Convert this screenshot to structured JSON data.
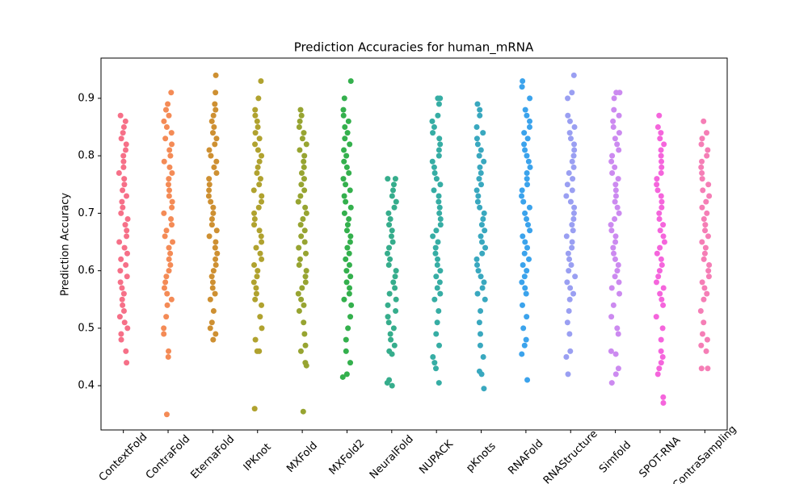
{
  "chart_data": {
    "type": "strip",
    "title": "Prediction Accuracies for human_mRNA",
    "ylabel": "Prediction Accuracy",
    "categories": [
      "ContextFold",
      "ContraFold",
      "EternaFold",
      "IPKnot",
      "MXFold",
      "MXFold2",
      "NeuralFold",
      "NUPACK",
      "pKnots",
      "RNAFold",
      "RNAStructure",
      "Simfold",
      "SPOT-RNA",
      "ContraSampling"
    ],
    "colors": [
      "#f67088",
      "#f48b56",
      "#ce9032",
      "#b0a22f",
      "#97a431",
      "#34b04d",
      "#36ad8c",
      "#36ada4",
      "#39a8bf",
      "#3ba3ec",
      "#9a9ff2",
      "#cc8af0",
      "#f565dc",
      "#f57eb6"
    ],
    "values": [
      [
        0.87,
        0.86,
        0.85,
        0.84,
        0.83,
        0.82,
        0.81,
        0.8,
        0.79,
        0.78,
        0.77,
        0.76,
        0.75,
        0.74,
        0.73,
        0.72,
        0.71,
        0.7,
        0.69,
        0.68,
        0.67,
        0.66,
        0.65,
        0.64,
        0.63,
        0.62,
        0.61,
        0.6,
        0.59,
        0.58,
        0.57,
        0.56,
        0.55,
        0.54,
        0.53,
        0.52,
        0.51,
        0.5,
        0.49,
        0.48,
        0.46,
        0.44
      ],
      [
        0.91,
        0.89,
        0.88,
        0.87,
        0.86,
        0.85,
        0.84,
        0.83,
        0.82,
        0.81,
        0.8,
        0.79,
        0.78,
        0.77,
        0.76,
        0.75,
        0.74,
        0.73,
        0.72,
        0.71,
        0.7,
        0.69,
        0.68,
        0.67,
        0.66,
        0.65,
        0.64,
        0.63,
        0.62,
        0.61,
        0.6,
        0.59,
        0.58,
        0.57,
        0.56,
        0.55,
        0.54,
        0.52,
        0.5,
        0.49,
        0.46,
        0.45,
        0.35
      ],
      [
        0.94,
        0.91,
        0.89,
        0.88,
        0.87,
        0.86,
        0.85,
        0.84,
        0.83,
        0.82,
        0.81,
        0.8,
        0.79,
        0.78,
        0.77,
        0.76,
        0.75,
        0.74,
        0.73,
        0.72,
        0.71,
        0.7,
        0.69,
        0.68,
        0.67,
        0.66,
        0.65,
        0.64,
        0.63,
        0.62,
        0.61,
        0.6,
        0.59,
        0.58,
        0.57,
        0.56,
        0.55,
        0.53,
        0.51,
        0.5,
        0.49,
        0.48
      ],
      [
        0.93,
        0.9,
        0.88,
        0.87,
        0.86,
        0.85,
        0.84,
        0.83,
        0.82,
        0.81,
        0.8,
        0.79,
        0.78,
        0.77,
        0.76,
        0.75,
        0.74,
        0.73,
        0.72,
        0.71,
        0.7,
        0.69,
        0.68,
        0.67,
        0.66,
        0.65,
        0.64,
        0.63,
        0.62,
        0.61,
        0.6,
        0.59,
        0.58,
        0.57,
        0.56,
        0.55,
        0.54,
        0.52,
        0.5,
        0.48,
        0.46,
        0.46,
        0.36
      ],
      [
        0.88,
        0.87,
        0.86,
        0.85,
        0.84,
        0.83,
        0.82,
        0.81,
        0.8,
        0.79,
        0.78,
        0.77,
        0.76,
        0.75,
        0.74,
        0.73,
        0.72,
        0.71,
        0.7,
        0.69,
        0.68,
        0.67,
        0.66,
        0.65,
        0.64,
        0.63,
        0.62,
        0.61,
        0.6,
        0.59,
        0.58,
        0.57,
        0.56,
        0.55,
        0.54,
        0.53,
        0.51,
        0.49,
        0.47,
        0.46,
        0.44,
        0.435,
        0.355
      ],
      [
        0.93,
        0.9,
        0.88,
        0.87,
        0.86,
        0.85,
        0.84,
        0.83,
        0.82,
        0.81,
        0.8,
        0.79,
        0.78,
        0.77,
        0.76,
        0.75,
        0.74,
        0.73,
        0.72,
        0.71,
        0.7,
        0.69,
        0.68,
        0.67,
        0.66,
        0.65,
        0.64,
        0.63,
        0.62,
        0.61,
        0.6,
        0.59,
        0.58,
        0.57,
        0.56,
        0.55,
        0.54,
        0.52,
        0.5,
        0.48,
        0.46,
        0.44,
        0.42,
        0.415
      ],
      [
        0.76,
        0.76,
        0.75,
        0.74,
        0.73,
        0.72,
        0.71,
        0.7,
        0.69,
        0.68,
        0.67,
        0.66,
        0.65,
        0.64,
        0.63,
        0.62,
        0.61,
        0.6,
        0.59,
        0.58,
        0.57,
        0.56,
        0.55,
        0.54,
        0.53,
        0.52,
        0.51,
        0.5,
        0.49,
        0.48,
        0.47,
        0.46,
        0.455,
        0.41,
        0.405,
        0.4
      ],
      [
        0.9,
        0.9,
        0.89,
        0.87,
        0.86,
        0.85,
        0.84,
        0.83,
        0.82,
        0.81,
        0.8,
        0.79,
        0.78,
        0.77,
        0.76,
        0.75,
        0.74,
        0.73,
        0.72,
        0.71,
        0.7,
        0.69,
        0.68,
        0.67,
        0.66,
        0.65,
        0.64,
        0.63,
        0.62,
        0.61,
        0.6,
        0.59,
        0.58,
        0.57,
        0.56,
        0.55,
        0.53,
        0.51,
        0.49,
        0.47,
        0.45,
        0.44,
        0.43,
        0.405
      ],
      [
        0.89,
        0.88,
        0.87,
        0.85,
        0.84,
        0.83,
        0.82,
        0.81,
        0.8,
        0.79,
        0.78,
        0.77,
        0.76,
        0.75,
        0.74,
        0.73,
        0.72,
        0.71,
        0.7,
        0.69,
        0.68,
        0.67,
        0.66,
        0.65,
        0.64,
        0.63,
        0.62,
        0.61,
        0.6,
        0.59,
        0.58,
        0.57,
        0.56,
        0.55,
        0.53,
        0.51,
        0.49,
        0.47,
        0.45,
        0.425,
        0.42,
        0.395
      ],
      [
        0.93,
        0.92,
        0.9,
        0.88,
        0.87,
        0.86,
        0.85,
        0.84,
        0.83,
        0.82,
        0.81,
        0.8,
        0.79,
        0.78,
        0.77,
        0.76,
        0.75,
        0.74,
        0.73,
        0.72,
        0.71,
        0.7,
        0.69,
        0.68,
        0.67,
        0.66,
        0.65,
        0.64,
        0.63,
        0.62,
        0.61,
        0.6,
        0.59,
        0.58,
        0.57,
        0.56,
        0.54,
        0.52,
        0.5,
        0.48,
        0.47,
        0.455,
        0.41
      ],
      [
        0.94,
        0.91,
        0.9,
        0.87,
        0.86,
        0.85,
        0.84,
        0.83,
        0.82,
        0.81,
        0.8,
        0.79,
        0.78,
        0.77,
        0.76,
        0.75,
        0.74,
        0.73,
        0.72,
        0.71,
        0.7,
        0.69,
        0.68,
        0.67,
        0.66,
        0.65,
        0.64,
        0.63,
        0.62,
        0.61,
        0.6,
        0.59,
        0.58,
        0.57,
        0.56,
        0.55,
        0.53,
        0.51,
        0.49,
        0.46,
        0.45,
        0.42
      ],
      [
        0.91,
        0.91,
        0.9,
        0.88,
        0.87,
        0.86,
        0.85,
        0.84,
        0.83,
        0.82,
        0.81,
        0.8,
        0.79,
        0.78,
        0.77,
        0.76,
        0.75,
        0.74,
        0.73,
        0.72,
        0.71,
        0.7,
        0.69,
        0.68,
        0.67,
        0.66,
        0.65,
        0.64,
        0.63,
        0.62,
        0.61,
        0.6,
        0.59,
        0.58,
        0.57,
        0.56,
        0.54,
        0.52,
        0.5,
        0.49,
        0.46,
        0.455,
        0.43,
        0.42,
        0.405
      ],
      [
        0.87,
        0.85,
        0.84,
        0.83,
        0.82,
        0.81,
        0.8,
        0.79,
        0.78,
        0.77,
        0.76,
        0.75,
        0.74,
        0.73,
        0.72,
        0.71,
        0.7,
        0.69,
        0.68,
        0.67,
        0.66,
        0.65,
        0.64,
        0.63,
        0.62,
        0.61,
        0.6,
        0.59,
        0.58,
        0.57,
        0.56,
        0.55,
        0.54,
        0.52,
        0.5,
        0.48,
        0.46,
        0.45,
        0.44,
        0.43,
        0.42,
        0.38,
        0.37
      ],
      [
        0.86,
        0.84,
        0.83,
        0.82,
        0.81,
        0.8,
        0.79,
        0.78,
        0.77,
        0.76,
        0.75,
        0.74,
        0.73,
        0.72,
        0.71,
        0.7,
        0.69,
        0.68,
        0.67,
        0.66,
        0.65,
        0.64,
        0.63,
        0.62,
        0.61,
        0.6,
        0.59,
        0.58,
        0.57,
        0.56,
        0.55,
        0.53,
        0.51,
        0.49,
        0.48,
        0.47,
        0.46,
        0.43,
        0.43
      ]
    ],
    "ylim": [
      0.323,
      0.97
    ],
    "yticks": [
      0.4,
      0.5,
      0.6,
      0.7,
      0.8,
      0.9
    ]
  }
}
